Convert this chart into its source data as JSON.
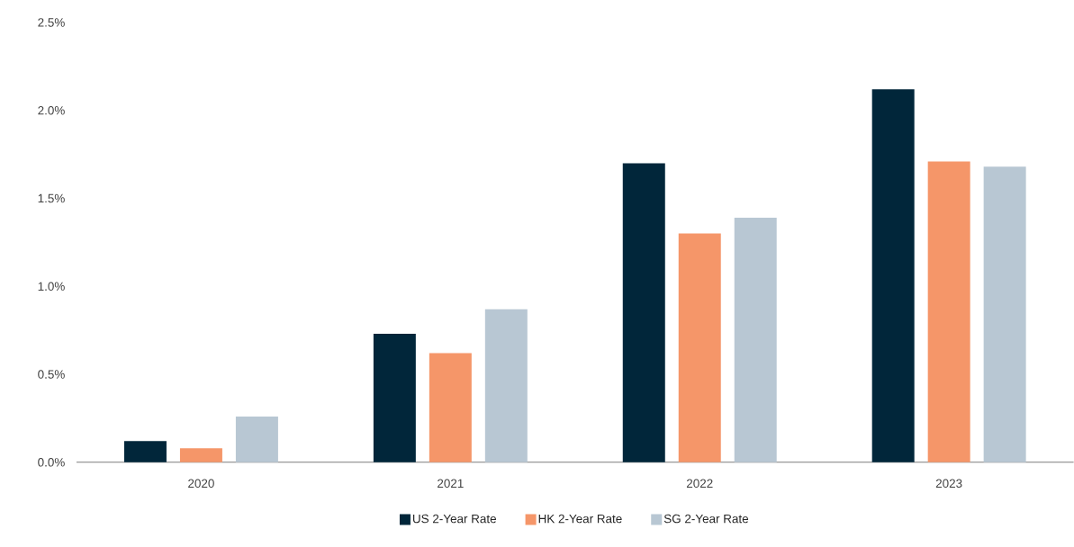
{
  "chart_data": {
    "type": "bar",
    "categories": [
      "2020",
      "2021",
      "2022",
      "2023"
    ],
    "series": [
      {
        "name": "US 2-Year Rate",
        "color": "#01263a",
        "values": [
          0.12,
          0.73,
          1.7,
          2.12
        ]
      },
      {
        "name": "HK 2-Year Rate",
        "color": "#f59669",
        "values": [
          0.08,
          0.62,
          1.3,
          1.71
        ]
      },
      {
        "name": "SG 2-Year Rate",
        "color": "#b8c7d3",
        "values": [
          0.26,
          0.87,
          1.39,
          1.68
        ]
      }
    ],
    "ylim": [
      0,
      2.5
    ],
    "yticks": [
      {
        "value": 0,
        "label": "0.0%"
      },
      {
        "value": 0.5,
        "label": "0.5%"
      },
      {
        "value": 1.0,
        "label": "1.0%"
      },
      {
        "value": 1.5,
        "label": "1.5%"
      },
      {
        "value": 2.0,
        "label": "2.0%"
      },
      {
        "value": 2.5,
        "label": "2.5%"
      }
    ],
    "grid": false,
    "legend": "bottom"
  }
}
